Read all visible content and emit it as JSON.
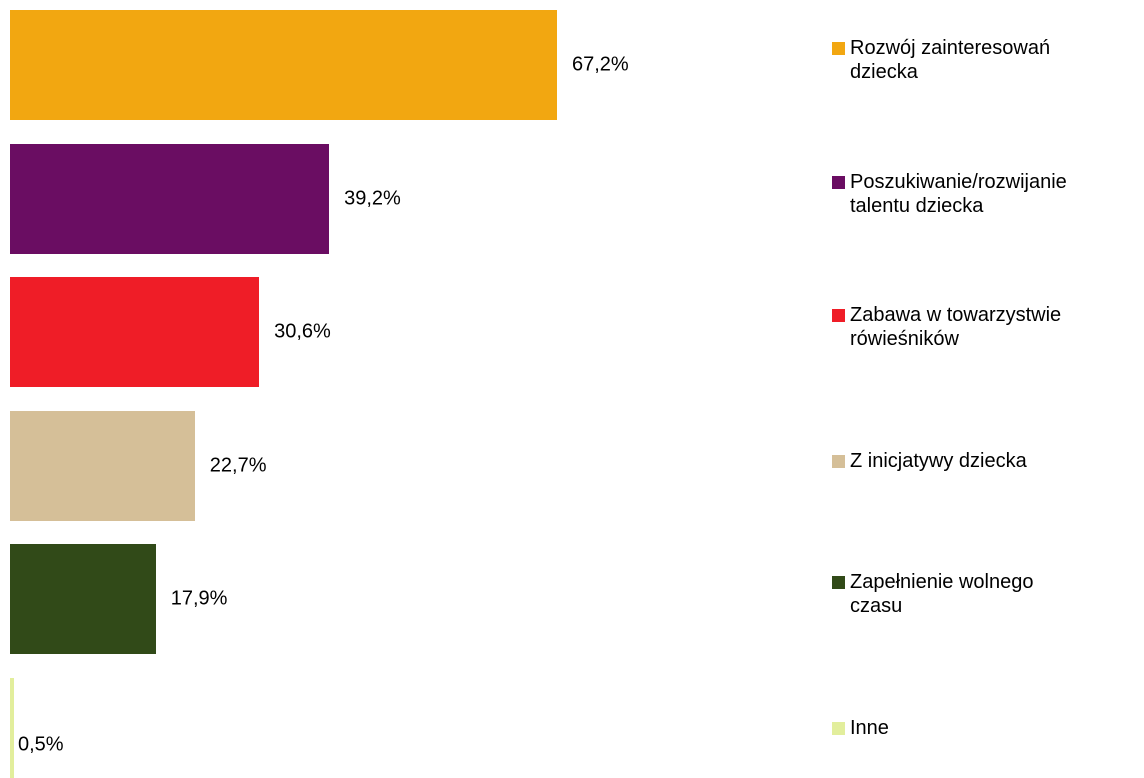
{
  "chart_data": {
    "type": "bar",
    "orientation": "horizontal",
    "categories": [
      "Rozwój zainteresowań dziecka",
      "Poszukiwanie/rozwijanie talentu dziecka",
      "Zabawa w towarzystwie rówieśników",
      "Z inicjatywy dziecka",
      "Zapełnienie wolnego czasu",
      "Inne"
    ],
    "values": [
      67.2,
      39.2,
      30.6,
      22.7,
      17.9,
      0.5
    ],
    "value_labels": [
      "67,2%",
      "39,2%",
      "30,6%",
      "22,7%",
      "17,9%",
      "0,5%"
    ],
    "colors": [
      "#f2a711",
      "#6a0d62",
      "#ef1d27",
      "#d5bf98",
      "#314a18",
      "#e2ee9c"
    ],
    "legend": "right"
  }
}
